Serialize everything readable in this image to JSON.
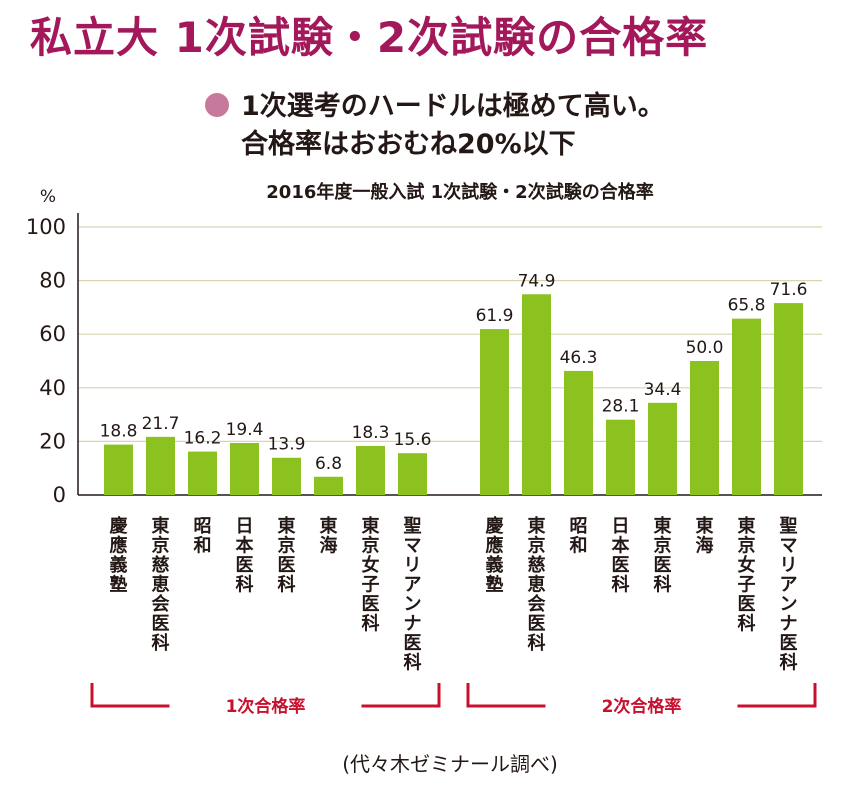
{
  "header": {
    "title": "私立大 1次試験・2次試験の合格率",
    "note_line1": "1次選考のハードルは極めて高い。",
    "note_line2": "合格率はおおむね20%以下"
  },
  "source_note": "(代々木ゼミナール調べ)",
  "colors": {
    "bar": "#8cc21f",
    "bracket": "#c8102e",
    "title": "#a2185b",
    "bullet": "#c6799b",
    "grid": "#d9d3b0"
  },
  "chart_data": {
    "type": "bar",
    "title": "2016年度一般入試 1次試験・2次試験の合格率",
    "y_unit": "%",
    "ylim": [
      0,
      100
    ],
    "yticks": [
      0,
      20,
      40,
      60,
      80,
      100
    ],
    "grid": true,
    "groups": [
      {
        "label": "1次合格率",
        "categories": [
          "慶應義塾",
          "東京慈恵会医科",
          "昭和",
          "日本医科",
          "東京医科",
          "東海",
          "東京女子医科",
          "聖マリアンナ医科"
        ],
        "values": [
          18.8,
          21.7,
          16.2,
          19.4,
          13.9,
          6.8,
          18.3,
          15.6
        ]
      },
      {
        "label": "2次合格率",
        "categories": [
          "慶應義塾",
          "東京慈恵会医科",
          "昭和",
          "日本医科",
          "東京医科",
          "東海",
          "東京女子医科",
          "聖マリアンナ医科"
        ],
        "values": [
          61.9,
          74.9,
          46.3,
          28.1,
          34.4,
          50.0,
          65.8,
          71.6
        ]
      }
    ]
  }
}
